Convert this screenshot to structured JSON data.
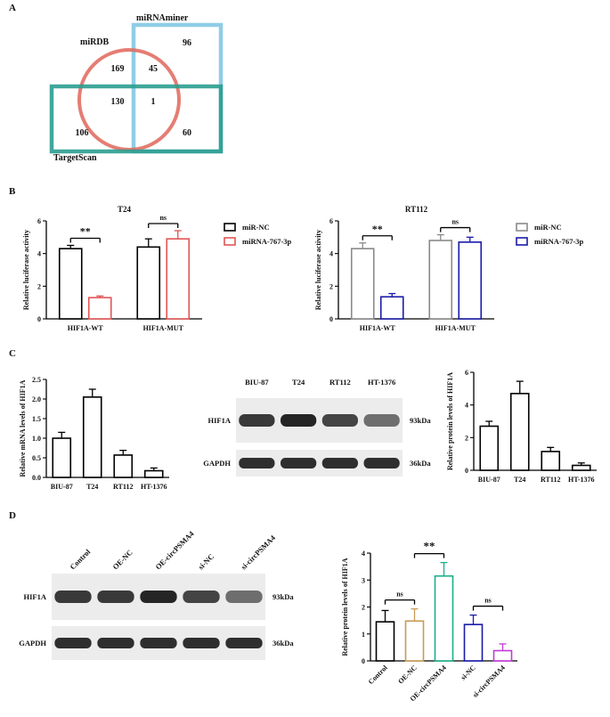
{
  "panel_labels": {
    "a": "A",
    "b": "B",
    "c": "C",
    "d": "D"
  },
  "venn": {
    "sets": [
      {
        "label": "miRNAminer",
        "color": "#8fcde6"
      },
      {
        "label": "miRDB",
        "color": "#e0665a"
      },
      {
        "label": "TargetScan",
        "color": "#2a9d8f"
      }
    ],
    "counts": {
      "mirnaminer_only": "96",
      "mirdb_mirnaminer": "45",
      "mirdb_only": "169",
      "mirdb_targetscan": "130",
      "all_three": "1",
      "targetscan_only": "106",
      "targetscan_mirnaminer": "60"
    }
  },
  "chart_data": [
    {
      "id": "b1",
      "type": "bar",
      "title": "T24",
      "ylabel": "Relative luciferase activity",
      "xlabel": "",
      "ylim": [
        0,
        6
      ],
      "yticks": [
        "0",
        "2",
        "4",
        "6"
      ],
      "categories": [
        "HIF1A-WT",
        "HIF1A-MUT"
      ],
      "series": [
        {
          "name": "miR-NC",
          "color": "#000000",
          "values": [
            4.3,
            4.4
          ],
          "errors": [
            0.2,
            0.5
          ]
        },
        {
          "name": "miRNA-767-3p",
          "color": "#e05555",
          "values": [
            1.3,
            4.9
          ],
          "errors": [
            0.1,
            0.5
          ]
        }
      ],
      "annotations": [
        "**",
        "ns"
      ]
    },
    {
      "id": "b2",
      "type": "bar",
      "title": "RT112",
      "ylabel": "Relative luciferase activity",
      "xlabel": "",
      "ylim": [
        0,
        6
      ],
      "yticks": [
        "0",
        "2",
        "4",
        "6"
      ],
      "categories": [
        "HIF1A-WT",
        "HIF1A-MUT"
      ],
      "series": [
        {
          "name": "miR-NC",
          "color": "#8a8a8a",
          "values": [
            4.3,
            4.8
          ],
          "errors": [
            0.35,
            0.35
          ]
        },
        {
          "name": "miRNA-767-3p",
          "color": "#1a1aaa",
          "values": [
            1.35,
            4.7
          ],
          "errors": [
            0.2,
            0.3
          ]
        }
      ],
      "annotations": [
        "**",
        "ns"
      ]
    },
    {
      "id": "c1",
      "type": "bar",
      "ylabel": "Relative mRNA levels of HIF1A",
      "xlabel": "",
      "ylim": [
        0,
        2.5
      ],
      "yticks": [
        "0.0",
        "0.5",
        "1.0",
        "1.5",
        "2.0",
        "2.5"
      ],
      "categories": [
        "BIU-87",
        "T24",
        "RT112",
        "HT-1376"
      ],
      "values": [
        1.0,
        2.05,
        0.57,
        0.17
      ],
      "errors": [
        0.15,
        0.2,
        0.12,
        0.07
      ]
    },
    {
      "id": "c2",
      "type": "bar",
      "ylabel": "Relative protein levels of HIF1A",
      "xlabel": "",
      "ylim": [
        0,
        6
      ],
      "yticks": [
        "0",
        "2",
        "4",
        "6"
      ],
      "categories": [
        "BIU-87",
        "T24",
        "RT112",
        "HT-1376"
      ],
      "values": [
        2.7,
        4.7,
        1.15,
        0.3
      ],
      "errors": [
        0.3,
        0.75,
        0.25,
        0.15
      ]
    },
    {
      "id": "d1",
      "type": "bar",
      "ylabel": "Relative protein levels of HIF1A",
      "xlabel": "",
      "ylim": [
        0,
        4
      ],
      "yticks": [
        "0",
        "1",
        "2",
        "3",
        "4"
      ],
      "categories": [
        "Control",
        "OE-NC",
        "OE-circPSMA4",
        "si-NC",
        "si-circPSMA4"
      ],
      "values": [
        1.45,
        1.48,
        3.15,
        1.35,
        0.38
      ],
      "errors": [
        0.42,
        0.45,
        0.5,
        0.35,
        0.25
      ],
      "colors": [
        "#000000",
        "#c99a55",
        "#1aae8a",
        "#1a1aaa",
        "#c23ad6"
      ],
      "annotations": [
        "ns",
        "**",
        "ns"
      ]
    }
  ],
  "blot_c": {
    "lanes": [
      "BIU-87",
      "T24",
      "RT112",
      "HT-1376"
    ],
    "proteins": [
      "HIF1A",
      "GAPDH"
    ],
    "sizes": [
      "93kDa",
      "36kDa"
    ]
  },
  "blot_d": {
    "lanes": [
      "Control",
      "OE-NC",
      "OE-circPSMA4",
      "si-NC",
      "si-circPSMA4"
    ],
    "proteins": [
      "HIF1A",
      "GAPDH"
    ],
    "sizes": [
      "93kDa",
      "36kDa"
    ]
  }
}
